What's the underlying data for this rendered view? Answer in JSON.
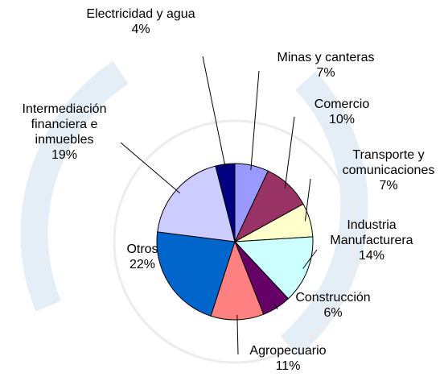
{
  "chart_data": {
    "type": "pie",
    "categories": [
      "Minas y canteras",
      "Comercio",
      "Transporte y comunicaciones",
      "Industria Manufacturera",
      "Construcción",
      "Agropecuario",
      "Otros",
      "Intermediación financiera e inmuebles",
      "Electricidad y agua"
    ],
    "values": [
      7,
      10,
      7,
      14,
      6,
      11,
      22,
      19,
      4
    ],
    "value_labels": [
      "7%",
      "10%",
      "7%",
      "14%",
      "6%",
      "11%",
      "22%",
      "19%",
      "4%"
    ],
    "colors": [
      "#9999ff",
      "#993366",
      "#ffffcc",
      "#ccffff",
      "#660066",
      "#ff8080",
      "#0066cc",
      "#ccccff",
      "#000080"
    ]
  }
}
